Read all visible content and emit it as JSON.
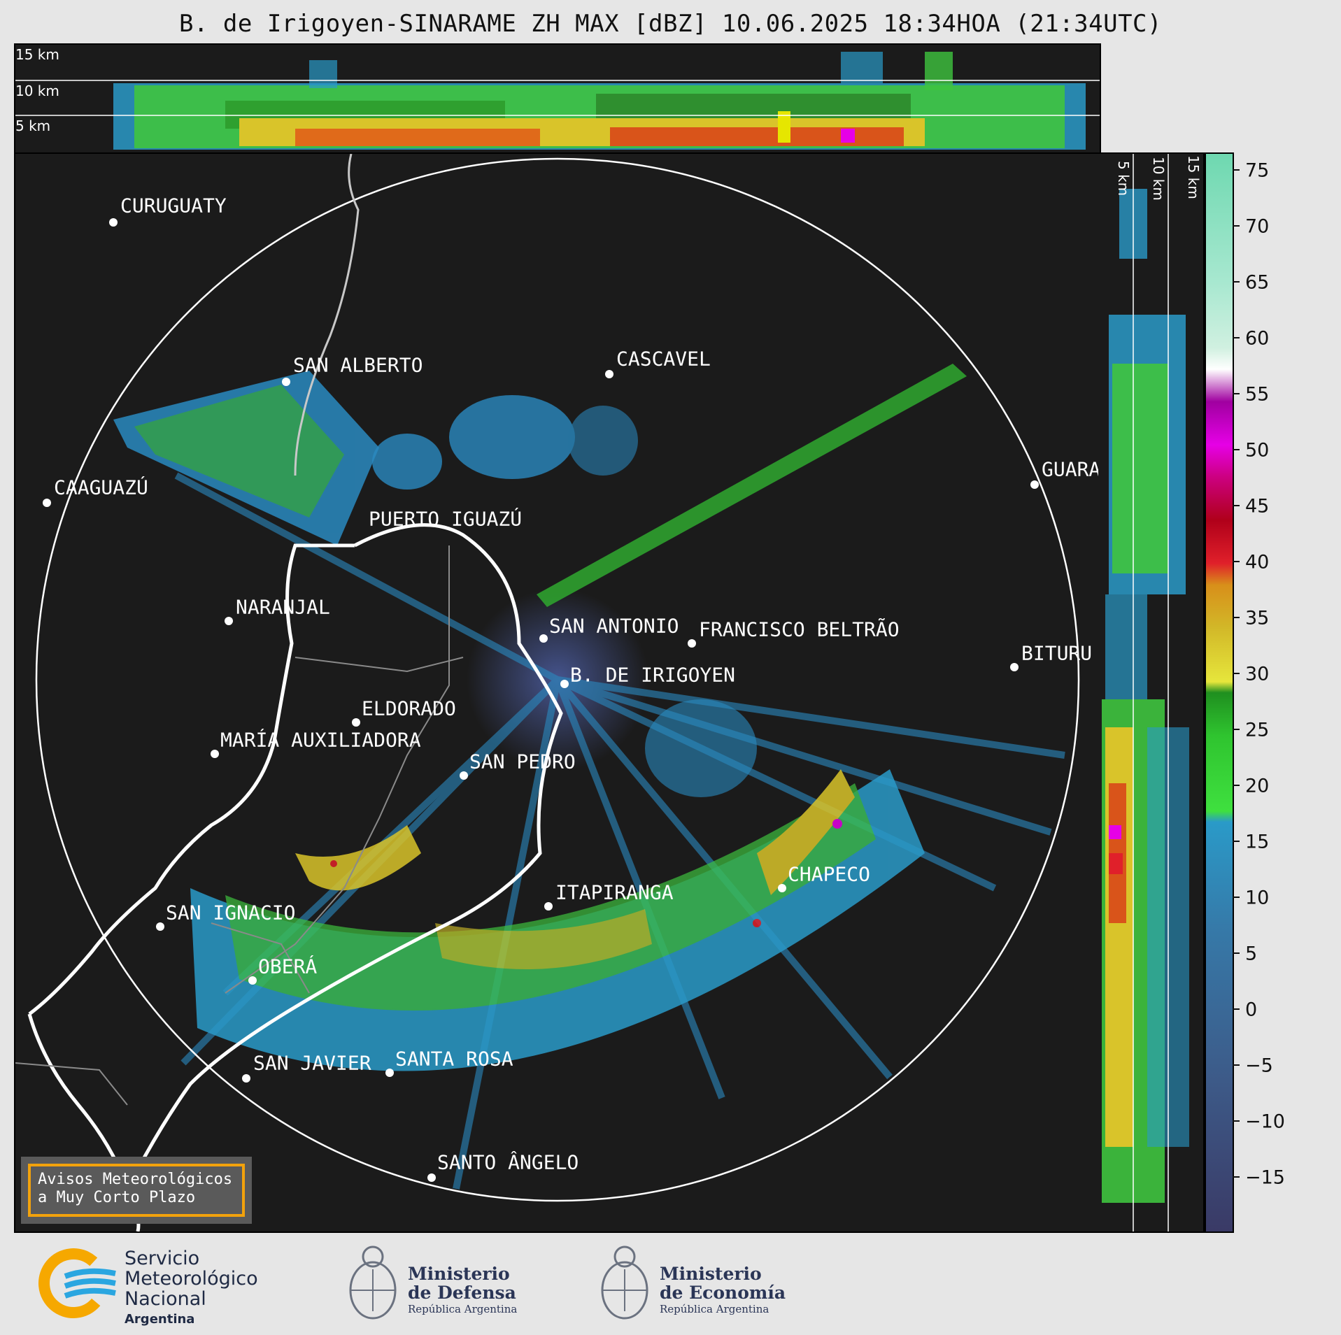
{
  "title": "B. de Irigoyen-SINARAME ZH MAX [dBZ] 10.06.2025 18:34HOA (21:34UTC)",
  "height_labels": [
    "15 km",
    "10 km",
    "5 km"
  ],
  "cities": [
    {
      "name": "CURUGUATY"
    },
    {
      "name": "SAN ALBERTO"
    },
    {
      "name": "CASCAVEL"
    },
    {
      "name": "CAAGUAZÚ"
    },
    {
      "name": "GUARA"
    },
    {
      "name": "PUERTO IGUAZÚ"
    },
    {
      "name": "NARANJAL"
    },
    {
      "name": "SAN ANTONIO"
    },
    {
      "name": "FRANCISCO BELTRÃO"
    },
    {
      "name": "BITURU"
    },
    {
      "name": "B. DE IRIGOYEN"
    },
    {
      "name": "ELDORADO"
    },
    {
      "name": "MARÍA AUXILIADORA"
    },
    {
      "name": "SAN PEDRO"
    },
    {
      "name": "ITAPIRANGA"
    },
    {
      "name": "CHAPECO"
    },
    {
      "name": "SAN IGNACIO"
    },
    {
      "name": "OBERÁ"
    },
    {
      "name": "SAN JAVIER"
    },
    {
      "name": "SANTA ROSA"
    },
    {
      "name": "SANTO ÂNGELO"
    }
  ],
  "colorbar": {
    "ticks": [
      "75",
      "70",
      "65",
      "60",
      "55",
      "50",
      "45",
      "40",
      "35",
      "30",
      "25",
      "20",
      "15",
      "10",
      "5",
      "0",
      "−5",
      "−10",
      "−15"
    ],
    "colors": [
      "#3a3a66",
      "#3c4a78",
      "#3d5a88",
      "#3a6a98",
      "#3679a8",
      "#2f89b8",
      "#2a9ac8",
      "#3fe03f",
      "#2fc42f",
      "#1f8f1f",
      "#e6e63c",
      "#d2b828",
      "#d88f1a",
      "#e0202a",
      "#b0001a",
      "#cc0080",
      "#e600e6",
      "#a000a0",
      "#ffffff",
      "#a8e8d0",
      "#6ed8b0"
    ]
  },
  "notice": {
    "line1": "Avisos Meteorológicos",
    "line2": "a Muy Corto Plazo"
  },
  "footer": {
    "smn_line1": "Servicio",
    "smn_line2": "Meteorológico",
    "smn_line3": "Nacional",
    "smn_line4": "Argentina",
    "defensa_line1": "Ministerio",
    "defensa_line2": "de Defensa",
    "defensa_line3": "República Argentina",
    "economia_line1": "Ministerio",
    "economia_line2": "de Economía",
    "economia_line3": "República Argentina"
  }
}
